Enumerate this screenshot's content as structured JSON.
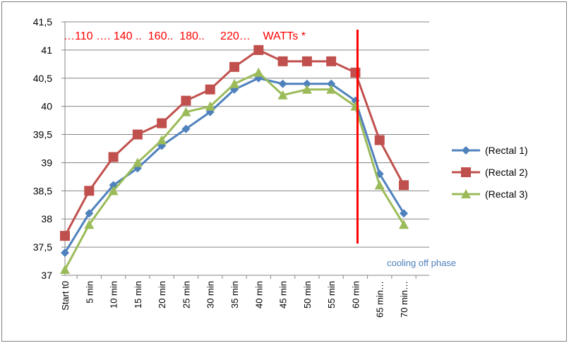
{
  "chart_data": {
    "type": "line",
    "categories": [
      "Start t0",
      "5 min",
      "10 min",
      "15 min",
      "20 min",
      "25 min",
      "30 min",
      "35 min",
      "40 min",
      "45 min",
      "50 min",
      "55 min",
      "60 min",
      "65 min",
      "70 min"
    ],
    "category_labels_shown": [
      "Start t0",
      "5 min",
      "10 min",
      "15 min",
      "20 min",
      "25 min",
      "30 min",
      "35 min",
      "40 min",
      "45 min",
      "50 min",
      "55 min",
      "60 min",
      "65 min…",
      "70 min…"
    ],
    "series": [
      {
        "name": "(Rectal 1)",
        "color": "#4f81bd",
        "marker": "diamond",
        "values": [
          37.4,
          38.1,
          38.6,
          38.9,
          39.3,
          39.6,
          39.9,
          40.3,
          40.5,
          40.4,
          40.4,
          40.4,
          40.1,
          38.8,
          38.1
        ]
      },
      {
        "name": "(Rectal 2)",
        "color": "#c0504d",
        "marker": "square",
        "values": [
          37.7,
          38.5,
          39.1,
          39.5,
          39.7,
          40.1,
          40.3,
          40.7,
          41.0,
          40.8,
          40.8,
          40.8,
          40.6,
          39.4,
          38.6
        ]
      },
      {
        "name": "(Rectal 3)",
        "color": "#9bbb59",
        "marker": "triangle",
        "values": [
          37.1,
          37.9,
          38.5,
          39.0,
          39.4,
          39.9,
          40.0,
          40.4,
          40.6,
          40.2,
          40.3,
          40.3,
          40.0,
          38.6,
          37.9
        ]
      }
    ],
    "y_ticks": [
      "37",
      "37,5",
      "38",
      "38,5",
      "39",
      "39,5",
      "40",
      "40,5",
      "41",
      "41,5"
    ],
    "ylim": [
      37,
      41.5
    ],
    "grid": true,
    "legend_position": "right",
    "annotations": {
      "watts_text": "…110 …. 140 ..  160..  180..     220…    WATTs *",
      "watts_color": "#ff0000",
      "cooling_text": "cooling off phase",
      "cooling_color": "#4f81bd",
      "marker_line_category": "60 min",
      "marker_line_color": "#ff0000"
    }
  }
}
